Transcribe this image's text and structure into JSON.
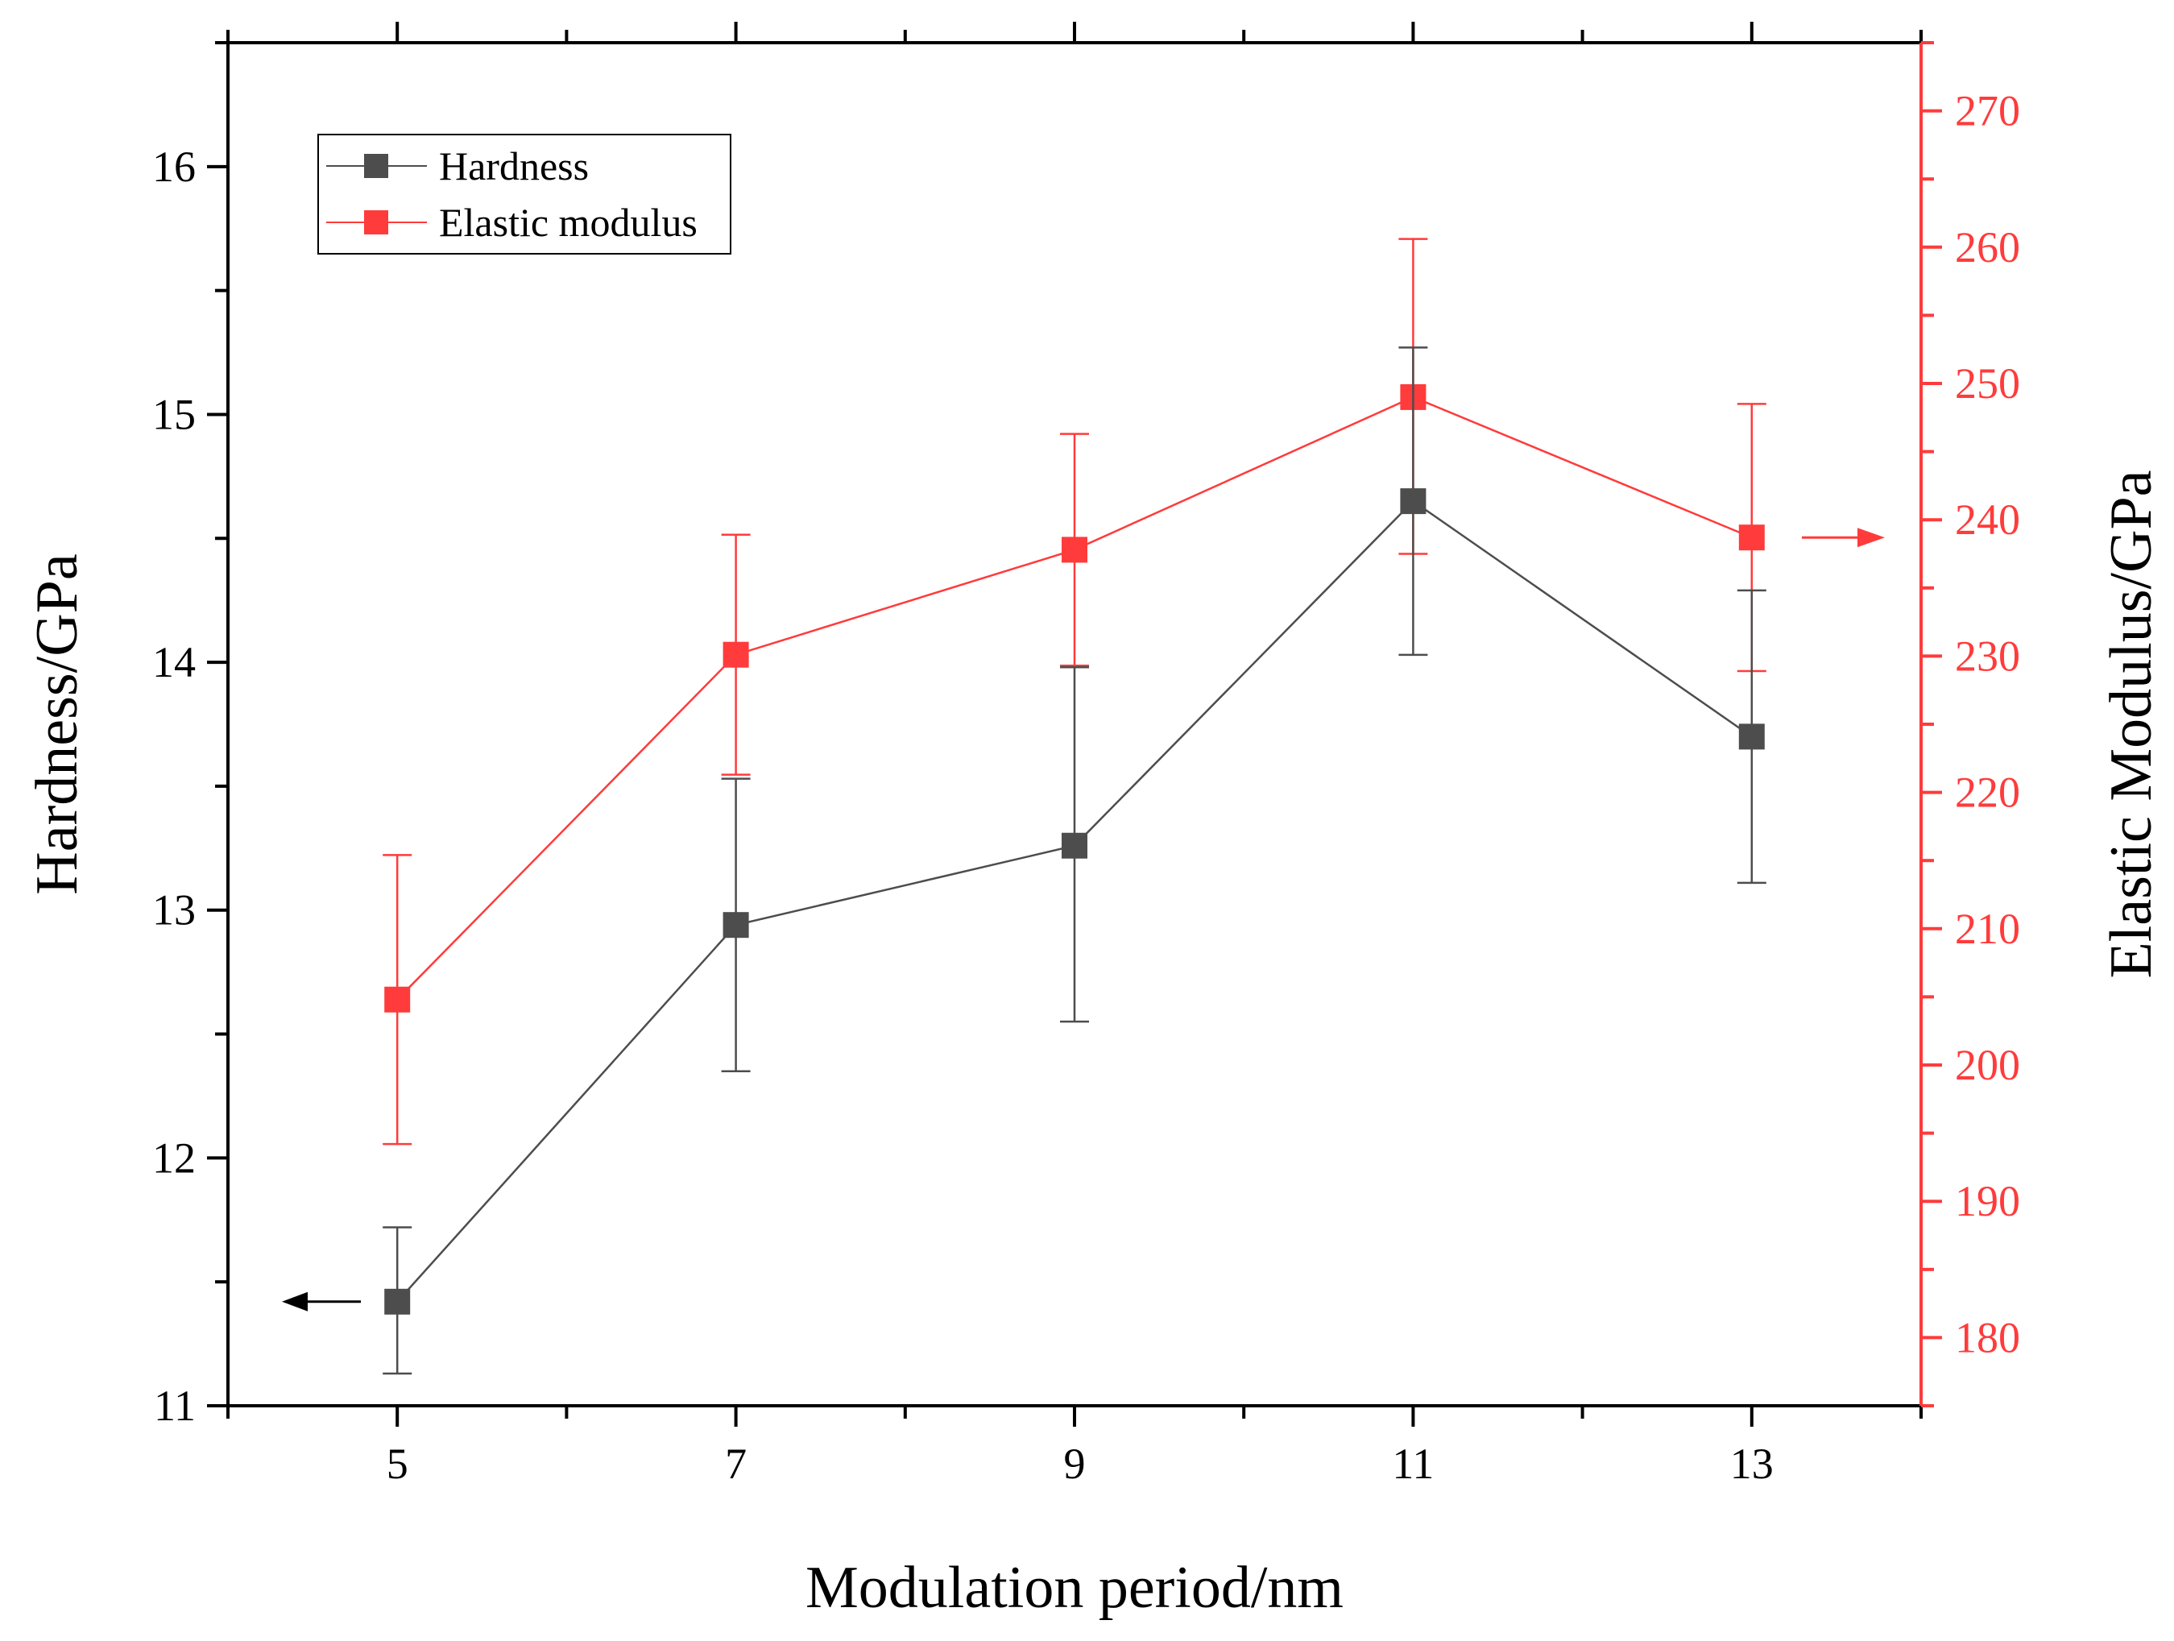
{
  "colors": {
    "hardness": "#4d4d4d",
    "modulus": "#ff3b3b",
    "axis_left": "#000000",
    "axis_right": "#ff3b3b"
  },
  "chart_data": {
    "type": "line",
    "title": "",
    "xlabel": "Modulation period/nm",
    "ylabel_left": "Hardness/GPa",
    "ylabel_right": "Elastic Modulus/GPa",
    "xlim": [
      4,
      14
    ],
    "ylim_left": [
      11,
      16.5
    ],
    "ylim_right": [
      175,
      275
    ],
    "x_ticks": [
      5,
      7,
      9,
      11,
      13
    ],
    "y_ticks_left": [
      11,
      12,
      13,
      14,
      15,
      16
    ],
    "y_ticks_right": [
      180,
      190,
      200,
      210,
      220,
      230,
      240,
      250,
      260,
      270
    ],
    "grid": false,
    "legend_position": "top-left",
    "series": [
      {
        "name": "Hardness",
        "axis": "left",
        "marker": "square",
        "x": [
          5,
          7,
          9,
          11,
          13
        ],
        "values": [
          11.42,
          12.94,
          13.26,
          14.65,
          13.7
        ],
        "error_low": [
          11.13,
          12.35,
          12.55,
          14.03,
          13.11
        ],
        "error_high": [
          11.72,
          13.53,
          13.98,
          15.27,
          14.29
        ]
      },
      {
        "name": "Elastic modulus",
        "axis": "right",
        "marker": "square",
        "x": [
          5,
          7,
          9,
          11,
          13
        ],
        "values": [
          204.8,
          230.1,
          237.8,
          249.0,
          238.7
        ],
        "error_low": [
          194.2,
          221.3,
          229.3,
          237.5,
          228.9
        ],
        "error_high": [
          215.4,
          238.9,
          246.3,
          260.6,
          248.5
        ]
      }
    ]
  }
}
